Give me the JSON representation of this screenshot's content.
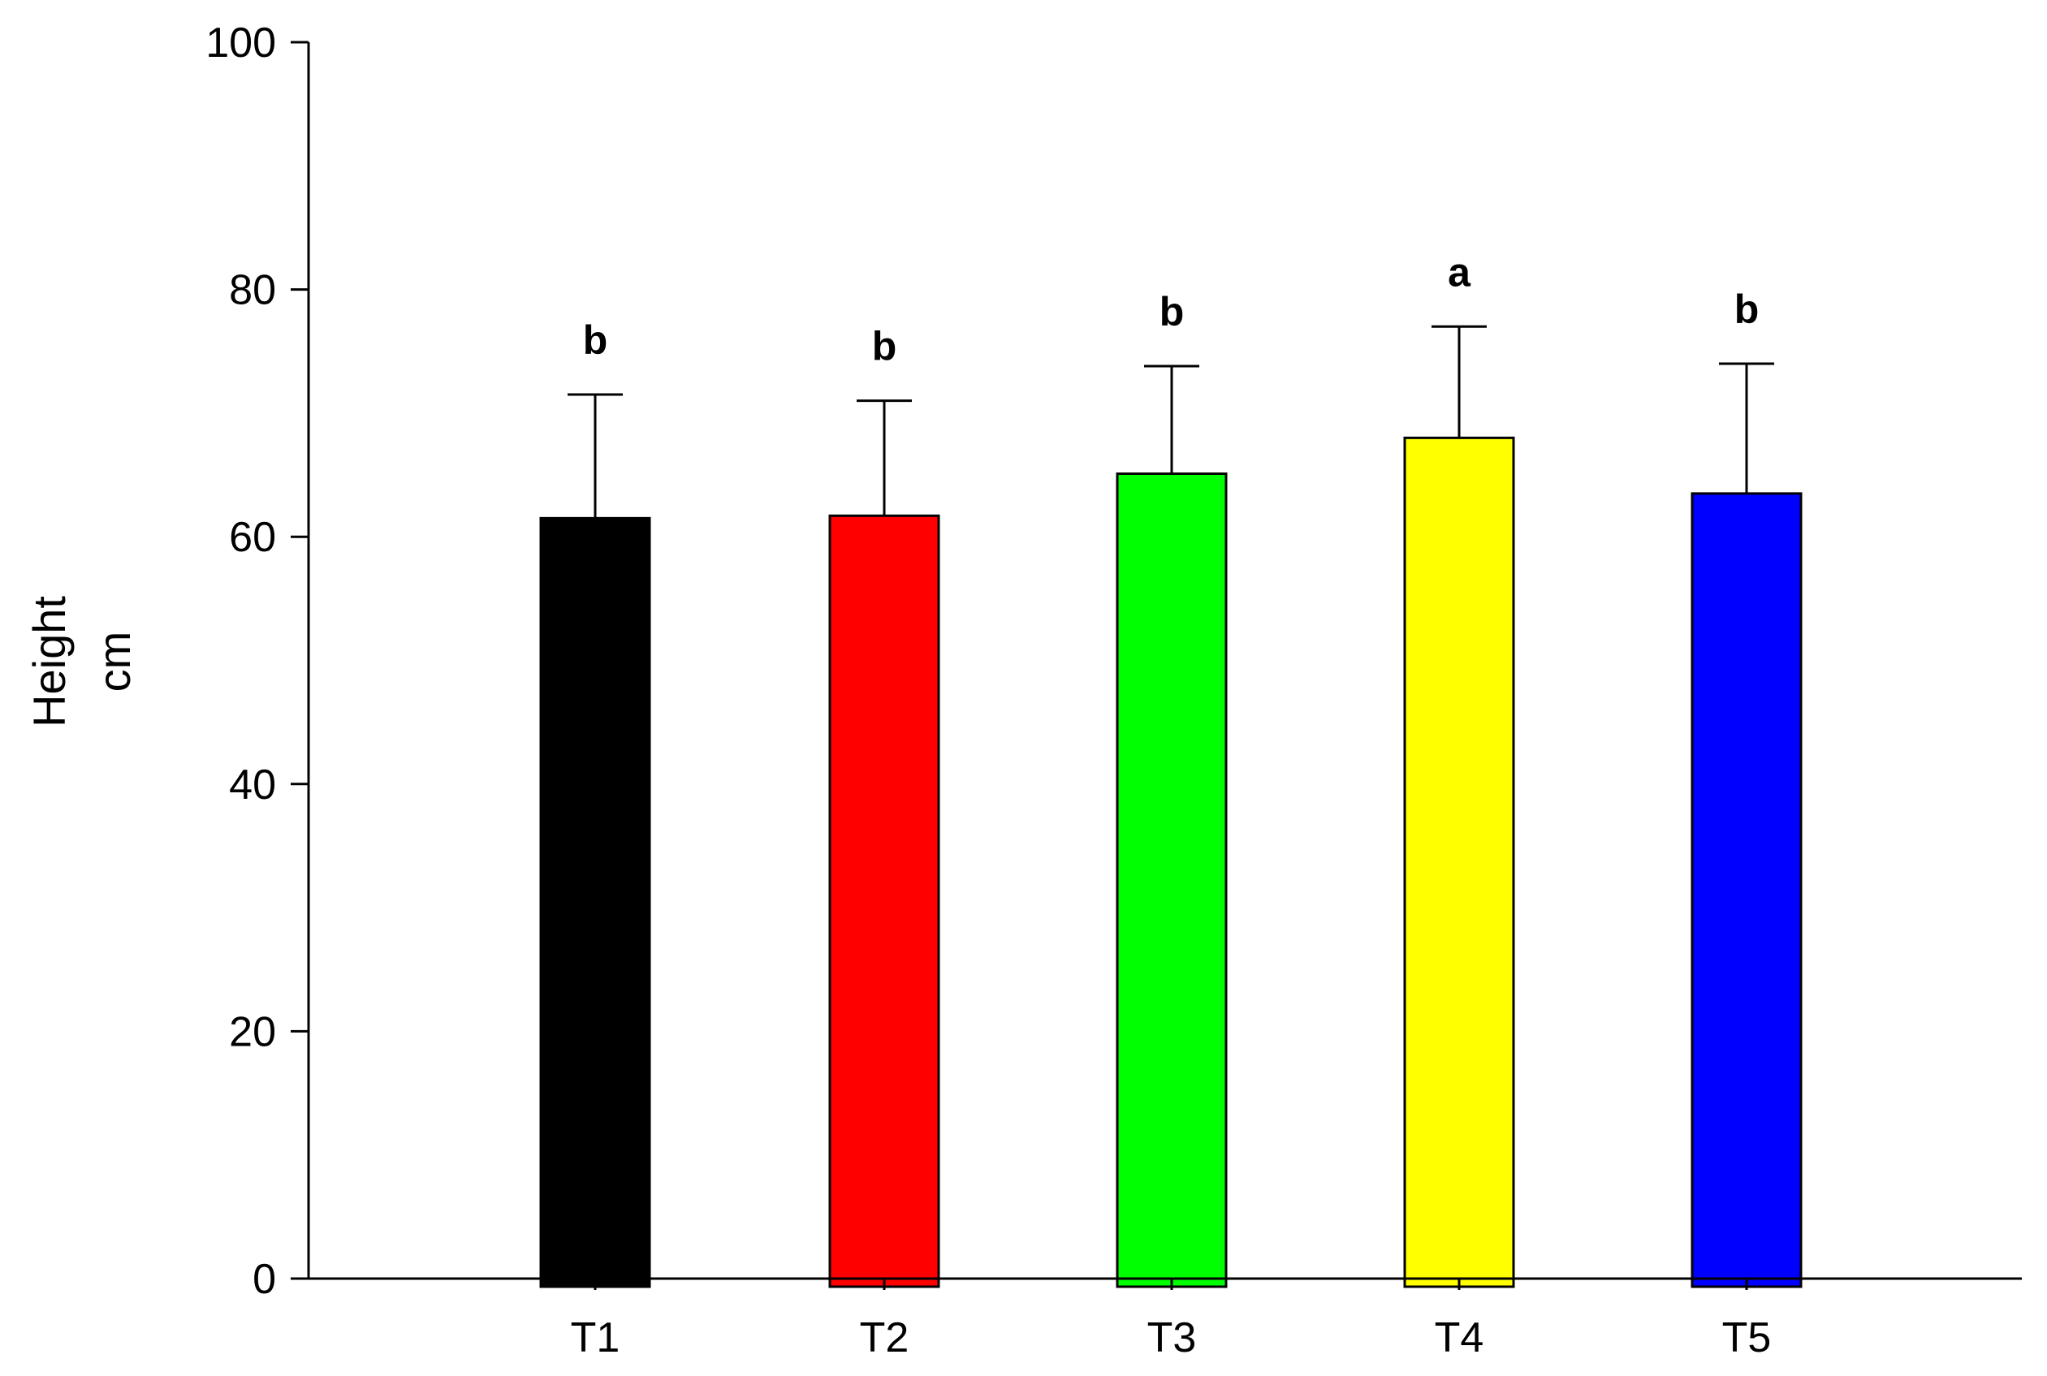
{
  "chart_data": {
    "type": "bar",
    "title": "",
    "xlabel": "",
    "ylabel": [
      "Height",
      "cm"
    ],
    "ylim": [
      0,
      100
    ],
    "yticks": [
      0,
      20,
      40,
      60,
      80,
      100
    ],
    "grid": false,
    "legend": "none",
    "categories": [
      "T1",
      "T2",
      "T3",
      "T4",
      "T5"
    ],
    "values": [
      61.5,
      61.7,
      65.1,
      68.0,
      63.5
    ],
    "errors": [
      10.0,
      9.3,
      8.7,
      9.0,
      10.5
    ],
    "significance": [
      "b",
      "b",
      "b",
      "a",
      "b"
    ],
    "colors": [
      "#000000",
      "#ff0000",
      "#00ff00",
      "#ffff00",
      "#0000ff"
    ]
  }
}
